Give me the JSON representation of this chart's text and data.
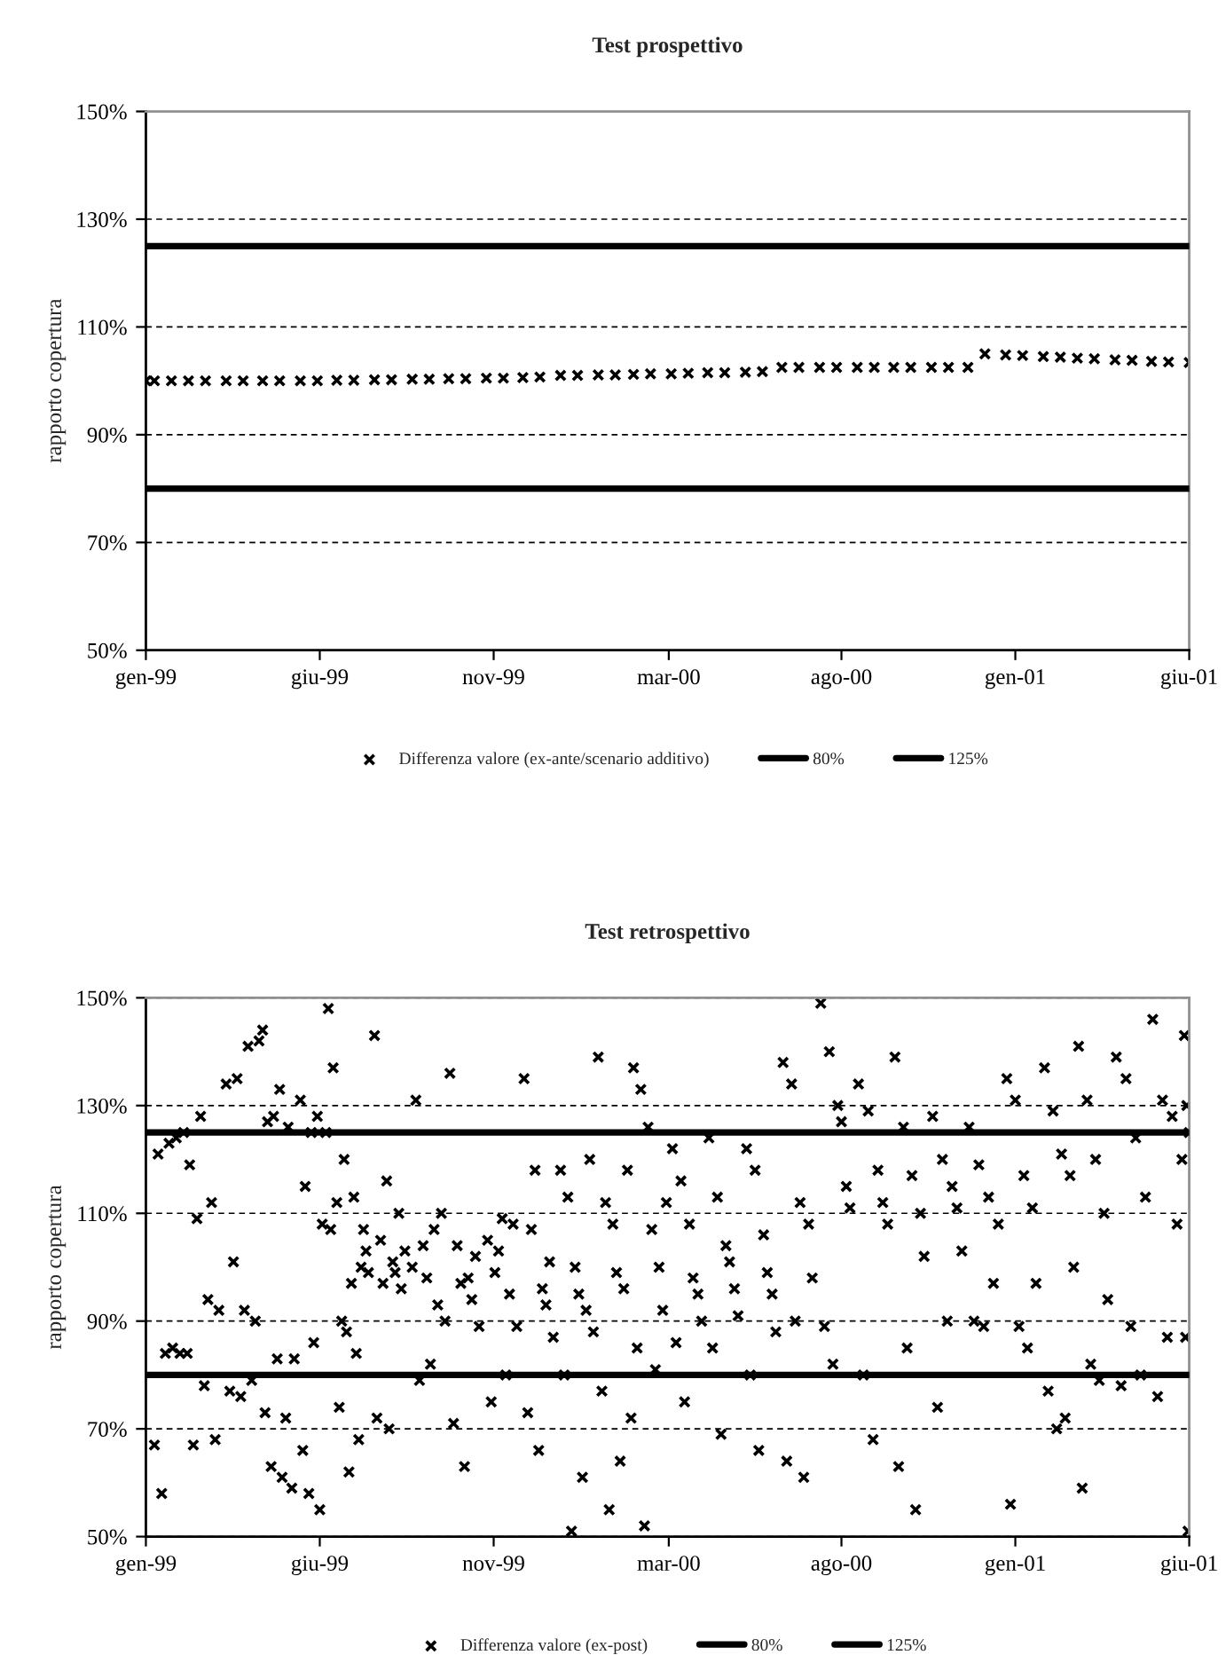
{
  "chart_data": [
    {
      "type": "scatter",
      "title": "Test prospettivo",
      "ylabel": "rapporto copertura",
      "marker": "cross",
      "grid": "y",
      "legend": "bottom",
      "ylim": [
        50,
        150
      ],
      "yticks": [
        {
          "value": 50,
          "label": "50%"
        },
        {
          "value": 70,
          "label": "70%"
        },
        {
          "value": 90,
          "label": "90%"
        },
        {
          "value": 110,
          "label": "110%"
        },
        {
          "value": 130,
          "label": "130%"
        },
        {
          "value": 150,
          "label": "150%"
        }
      ],
      "xlim": [
        "1999-01-25",
        "2001-06-01"
      ],
      "xticks": [
        {
          "value": "1999-01-25",
          "label": "gen-99"
        },
        {
          "value": "1999-06-17",
          "label": "giu-99"
        },
        {
          "value": "1999-11-07",
          "label": "nov-99"
        },
        {
          "value": "2000-03-30",
          "label": "mar-00"
        },
        {
          "value": "2000-08-19",
          "label": "ago-00"
        },
        {
          "value": "2001-01-09",
          "label": "gen-01"
        },
        {
          "value": "2001-06-01",
          "label": "giu-01"
        }
      ],
      "ref_lines": [
        {
          "axis": "y",
          "value": 80,
          "label": "80%",
          "color": "#000000",
          "line_style": "solid"
        },
        {
          "axis": "y",
          "value": 125,
          "label": "125%",
          "color": "#000000",
          "line_style": "solid"
        }
      ],
      "series": [
        {
          "name": "Differenza valore (ex-ante/scenario additivo)",
          "color": "#000000",
          "x": [
            "1999-01-25",
            "1999-02-01",
            "1999-02-15",
            "1999-03-01",
            "1999-03-15",
            "1999-04-01",
            "1999-04-15",
            "1999-05-01",
            "1999-05-15",
            "1999-06-01",
            "1999-06-15",
            "1999-07-01",
            "1999-07-15",
            "1999-08-01",
            "1999-08-15",
            "1999-09-01",
            "1999-09-15",
            "1999-10-01",
            "1999-10-15",
            "1999-11-01",
            "1999-11-15",
            "1999-12-01",
            "1999-12-15",
            "2000-01-01",
            "2000-01-15",
            "2000-02-01",
            "2000-02-15",
            "2000-03-01",
            "2000-03-15",
            "2000-04-01",
            "2000-04-15",
            "2000-05-01",
            "2000-05-15",
            "2000-06-01",
            "2000-06-15",
            "2000-07-01",
            "2000-07-15",
            "2000-08-01",
            "2000-08-15",
            "2000-09-01",
            "2000-09-15",
            "2000-10-01",
            "2000-10-15",
            "2000-11-01",
            "2000-11-15",
            "2000-12-01",
            "2000-12-15",
            "2001-01-01",
            "2001-01-15",
            "2001-02-01",
            "2001-02-15",
            "2001-03-01",
            "2001-03-15",
            "2001-04-01",
            "2001-04-15",
            "2001-05-01",
            "2001-05-15",
            "2001-06-01"
          ],
          "values": [
            100,
            100,
            100,
            100,
            100,
            100,
            100,
            100,
            100,
            100,
            100,
            100.1,
            100.1,
            100.2,
            100.2,
            100.3,
            100.3,
            100.4,
            100.4,
            100.5,
            100.5,
            100.6,
            100.7,
            101.0,
            101.0,
            101.1,
            101.1,
            101.2,
            101.3,
            101.3,
            101.4,
            101.5,
            101.5,
            101.6,
            101.7,
            102.5,
            102.5,
            102.5,
            102.5,
            102.5,
            102.5,
            102.5,
            102.5,
            102.5,
            102.5,
            102.5,
            105.0,
            104.8,
            104.7,
            104.5,
            104.4,
            104.2,
            104.1,
            103.9,
            103.8,
            103.6,
            103.5,
            103.4
          ]
        }
      ]
    },
    {
      "type": "scatter",
      "title": "Test retrospettivo",
      "ylabel": "rapporto copertura",
      "marker": "cross",
      "grid": "y",
      "legend": "bottom",
      "ylim": [
        50,
        150
      ],
      "yticks": [
        {
          "value": 50,
          "label": "50%"
        },
        {
          "value": 70,
          "label": "70%"
        },
        {
          "value": 90,
          "label": "90%"
        },
        {
          "value": 110,
          "label": "110%"
        },
        {
          "value": 130,
          "label": "130%"
        },
        {
          "value": 150,
          "label": "150%"
        }
      ],
      "xlim": [
        "1999-01-25",
        "2001-06-01"
      ],
      "xticks": [
        {
          "value": "1999-01-25",
          "label": "gen-99"
        },
        {
          "value": "1999-06-17",
          "label": "giu-99"
        },
        {
          "value": "1999-11-07",
          "label": "nov-99"
        },
        {
          "value": "2000-03-30",
          "label": "mar-00"
        },
        {
          "value": "2000-08-19",
          "label": "ago-00"
        },
        {
          "value": "2001-01-09",
          "label": "gen-01"
        },
        {
          "value": "2001-06-01",
          "label": "giu-01"
        }
      ],
      "ref_lines": [
        {
          "axis": "y",
          "value": 80,
          "label": "80%",
          "color": "#000000",
          "line_style": "solid"
        },
        {
          "axis": "y",
          "value": 125,
          "label": "125%",
          "color": "#000000",
          "line_style": "solid"
        }
      ],
      "series": [
        {
          "name": "Differenza valore (ex-post)",
          "color": "#000000",
          "x": [
            "1999-02-01",
            "1999-02-04",
            "1999-02-07",
            "1999-02-10",
            "1999-02-13",
            "1999-02-16",
            "1999-02-19",
            "1999-02-22",
            "1999-02-25",
            "1999-02-28",
            "1999-03-02",
            "1999-03-05",
            "1999-03-08",
            "1999-03-11",
            "1999-03-14",
            "1999-03-17",
            "1999-03-20",
            "1999-03-23",
            "1999-03-26",
            "1999-04-01",
            "1999-04-04",
            "1999-04-07",
            "1999-04-10",
            "1999-04-13",
            "1999-04-16",
            "1999-04-19",
            "1999-04-22",
            "1999-04-25",
            "1999-04-28",
            "1999-05-01",
            "1999-05-03",
            "1999-05-05",
            "1999-05-08",
            "1999-05-10",
            "1999-05-13",
            "1999-05-15",
            "1999-05-17",
            "1999-05-20",
            "1999-05-22",
            "1999-05-25",
            "1999-05-27",
            "1999-06-01",
            "1999-06-03",
            "1999-06-05",
            "1999-06-08",
            "1999-06-10",
            "1999-06-12",
            "1999-06-15",
            "1999-06-17",
            "1999-06-19",
            "1999-06-22",
            "1999-06-24",
            "1999-06-26",
            "1999-06-28",
            "1999-07-01",
            "1999-07-03",
            "1999-07-05",
            "1999-07-07",
            "1999-07-09",
            "1999-07-11",
            "1999-07-13",
            "1999-07-15",
            "1999-07-17",
            "1999-07-19",
            "1999-07-21",
            "1999-07-23",
            "1999-07-25",
            "1999-07-27",
            "1999-08-01",
            "1999-08-03",
            "1999-08-06",
            "1999-08-08",
            "1999-08-11",
            "1999-08-13",
            "1999-08-16",
            "1999-08-18",
            "1999-08-21",
            "1999-08-23",
            "1999-08-26",
            "1999-09-01",
            "1999-09-04",
            "1999-09-07",
            "1999-09-10",
            "1999-09-13",
            "1999-09-16",
            "1999-09-19",
            "1999-09-22",
            "1999-09-25",
            "1999-09-28",
            "1999-10-02",
            "1999-10-05",
            "1999-10-08",
            "1999-10-11",
            "1999-10-14",
            "1999-10-17",
            "1999-10-20",
            "1999-10-23",
            "1999-10-26",
            "1999-11-02",
            "1999-11-05",
            "1999-11-08",
            "1999-11-11",
            "1999-11-14",
            "1999-11-17",
            "1999-11-20",
            "1999-11-23",
            "1999-11-26",
            "1999-12-02",
            "1999-12-05",
            "1999-12-08",
            "1999-12-11",
            "1999-12-14",
            "1999-12-17",
            "1999-12-20",
            "1999-12-23",
            "1999-12-26",
            "2000-01-01",
            "2000-01-04",
            "2000-01-07",
            "2000-01-10",
            "2000-01-13",
            "2000-01-16",
            "2000-01-19",
            "2000-01-22",
            "2000-01-25",
            "2000-01-28",
            "2000-02-01",
            "2000-02-04",
            "2000-02-07",
            "2000-02-10",
            "2000-02-13",
            "2000-02-16",
            "2000-02-19",
            "2000-02-22",
            "2000-02-25",
            "2000-02-28",
            "2000-03-01",
            "2000-03-04",
            "2000-03-07",
            "2000-03-10",
            "2000-03-13",
            "2000-03-16",
            "2000-03-19",
            "2000-03-22",
            "2000-03-25",
            "2000-03-28",
            "2000-04-02",
            "2000-04-05",
            "2000-04-09",
            "2000-04-12",
            "2000-04-16",
            "2000-04-19",
            "2000-04-23",
            "2000-04-26",
            "2000-05-02",
            "2000-05-05",
            "2000-05-09",
            "2000-05-12",
            "2000-05-16",
            "2000-05-19",
            "2000-05-23",
            "2000-05-26",
            "2000-06-02",
            "2000-06-05",
            "2000-06-09",
            "2000-06-12",
            "2000-06-16",
            "2000-06-19",
            "2000-06-23",
            "2000-06-26",
            "2000-07-02",
            "2000-07-05",
            "2000-07-09",
            "2000-07-12",
            "2000-07-16",
            "2000-07-19",
            "2000-07-23",
            "2000-07-26",
            "2000-08-02",
            "2000-08-05",
            "2000-08-09",
            "2000-08-12",
            "2000-08-16",
            "2000-08-19",
            "2000-08-23",
            "2000-08-26",
            "2000-09-02",
            "2000-09-06",
            "2000-09-10",
            "2000-09-14",
            "2000-09-18",
            "2000-09-22",
            "2000-09-26",
            "2000-10-02",
            "2000-10-05",
            "2000-10-09",
            "2000-10-12",
            "2000-10-16",
            "2000-10-19",
            "2000-10-23",
            "2000-10-26",
            "2000-11-02",
            "2000-11-06",
            "2000-11-10",
            "2000-11-14",
            "2000-11-18",
            "2000-11-22",
            "2000-11-26",
            "2000-12-02",
            "2000-12-06",
            "2000-12-10",
            "2000-12-14",
            "2000-12-18",
            "2000-12-22",
            "2000-12-26",
            "2001-01-02",
            "2001-01-05",
            "2001-01-09",
            "2001-01-12",
            "2001-01-16",
            "2001-01-19",
            "2001-01-23",
            "2001-01-26",
            "2001-02-02",
            "2001-02-05",
            "2001-02-09",
            "2001-02-12",
            "2001-02-16",
            "2001-02-19",
            "2001-02-23",
            "2001-02-26",
            "2001-03-02",
            "2001-03-05",
            "2001-03-09",
            "2001-03-12",
            "2001-03-16",
            "2001-03-19",
            "2001-03-23",
            "2001-03-26",
            "2001-04-02",
            "2001-04-06",
            "2001-04-10",
            "2001-04-14",
            "2001-04-18",
            "2001-04-22",
            "2001-04-26",
            "2001-05-02",
            "2001-05-06",
            "2001-05-10",
            "2001-05-14",
            "2001-05-18",
            "2001-05-22",
            "2001-05-26",
            "2001-05-28",
            "2001-05-29",
            "2001-05-30",
            "2001-05-31",
            "2001-06-01"
          ],
          "values": [
            67,
            121,
            58,
            84,
            123,
            85,
            124,
            84,
            125,
            84,
            119,
            67,
            109,
            128,
            78,
            94,
            112,
            68,
            92,
            134,
            77,
            101,
            135,
            76,
            92,
            141,
            79,
            90,
            142,
            144,
            73,
            127,
            63,
            128,
            83,
            133,
            61,
            72,
            126,
            59,
            83,
            131,
            66,
            115,
            58,
            125,
            86,
            128,
            55,
            108,
            125,
            148,
            107,
            137,
            112,
            74,
            90,
            120,
            88,
            62,
            97,
            113,
            84,
            68,
            100,
            107,
            103,
            99,
            143,
            72,
            105,
            97,
            116,
            70,
            101,
            99,
            110,
            96,
            103,
            100,
            131,
            79,
            104,
            98,
            82,
            107,
            93,
            110,
            90,
            136,
            71,
            104,
            97,
            63,
            98,
            94,
            102,
            89,
            105,
            75,
            99,
            103,
            109,
            80,
            95,
            108,
            89,
            135,
            73,
            107,
            118,
            66,
            96,
            93,
            101,
            87,
            118,
            80,
            113,
            51,
            100,
            95,
            61,
            92,
            120,
            88,
            139,
            77,
            112,
            55,
            108,
            99,
            64,
            96,
            118,
            72,
            137,
            85,
            133,
            52,
            126,
            107,
            81,
            100,
            92,
            112,
            122,
            86,
            116,
            75,
            108,
            98,
            95,
            90,
            124,
            85,
            113,
            69,
            104,
            101,
            96,
            91,
            122,
            80,
            118,
            66,
            106,
            99,
            95,
            88,
            138,
            64,
            134,
            90,
            112,
            61,
            108,
            98,
            149,
            89,
            140,
            82,
            130,
            127,
            115,
            111,
            134,
            80,
            129,
            68,
            118,
            112,
            108,
            139,
            63,
            126,
            85,
            117,
            55,
            110,
            102,
            128,
            74,
            120,
            90,
            115,
            111,
            103,
            126,
            90,
            119,
            89,
            113,
            97,
            108,
            135,
            56,
            131,
            89,
            117,
            85,
            111,
            97,
            137,
            77,
            129,
            70,
            121,
            72,
            117,
            100,
            141,
            59,
            131,
            82,
            120,
            79,
            110,
            94,
            139,
            78,
            135,
            89,
            124,
            80,
            113,
            146,
            76,
            131,
            87,
            128,
            108,
            120,
            143,
            87,
            130,
            51,
            125
          ]
        }
      ]
    }
  ]
}
